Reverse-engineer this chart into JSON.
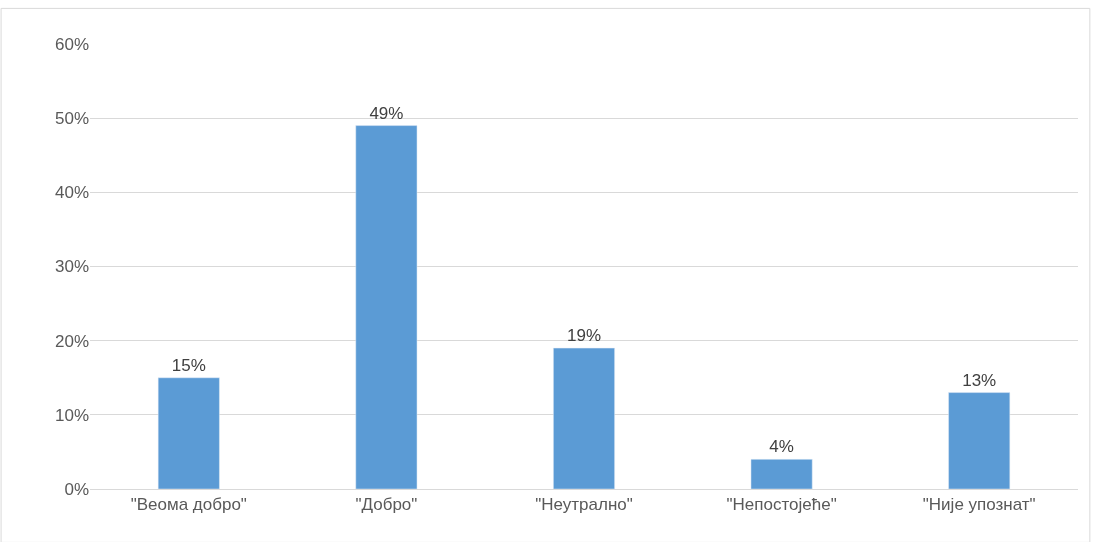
{
  "chart_data": {
    "type": "bar",
    "categories": [
      "\"Веома добро\"",
      "\"Добро\"",
      "\"Неутрално\"",
      "\"Непостојеће\"",
      "\"Није упознат\""
    ],
    "values": [
      15,
      49,
      19,
      4,
      13
    ],
    "value_labels": [
      "15%",
      "49%",
      "19%",
      "4%",
      "13%"
    ],
    "color": "#5b9bd5",
    "ylim": [
      0,
      60
    ],
    "yticks": [
      {
        "value": 0,
        "label": "0%"
      },
      {
        "value": 10,
        "label": "10%"
      },
      {
        "value": 20,
        "label": "20%"
      },
      {
        "value": 30,
        "label": "30%"
      },
      {
        "value": 40,
        "label": "40%"
      },
      {
        "value": 50,
        "label": "50%"
      },
      {
        "value": 60,
        "label": "60%"
      }
    ],
    "grid": "y",
    "legend": false
  }
}
